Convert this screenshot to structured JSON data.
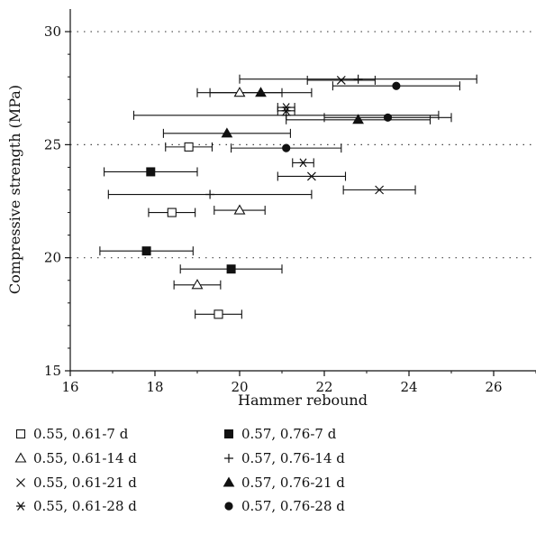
{
  "chart_data": {
    "type": "scatter",
    "xlabel": "Hammer rebound",
    "ylabel": "Compressive strength (MPa)",
    "xlim": [
      16,
      27
    ],
    "ylim": [
      15,
      31
    ],
    "x_ticks": [
      "16",
      "18",
      "20",
      "22",
      "24",
      "26"
    ],
    "y_ticks": [
      "15",
      "20",
      "25",
      "30"
    ],
    "grid": "horizontal dotted at 20, 25, 30",
    "legend_position": "bottom",
    "series": [
      {
        "name": "0.55, 0.61-7 d",
        "marker": "square-open",
        "points": [
          {
            "x": 18.8,
            "y": 24.9,
            "xerr": 0.55
          },
          {
            "x": 18.4,
            "y": 22.0,
            "xerr": 0.55
          },
          {
            "x": 19.5,
            "y": 17.5,
            "xerr": 0.55
          }
        ]
      },
      {
        "name": "0.57, 0.76-7 d",
        "marker": "square-filled",
        "points": [
          {
            "x": 17.9,
            "y": 23.8,
            "xerr": 1.1
          },
          {
            "x": 17.8,
            "y": 20.3,
            "xerr": 1.1
          },
          {
            "x": 19.8,
            "y": 19.5,
            "xerr": 1.2
          }
        ]
      },
      {
        "name": "0.55, 0.61-14 d",
        "marker": "triangle-open",
        "points": [
          {
            "x": 20.0,
            "y": 27.3,
            "xerr": 1.0
          },
          {
            "x": 20.0,
            "y": 22.1,
            "xerr": 0.6
          },
          {
            "x": 19.0,
            "y": 18.8,
            "xerr": 0.55
          }
        ]
      },
      {
        "name": "0.57, 0.76-14 d",
        "marker": "plus",
        "points": [
          {
            "x": 22.8,
            "y": 27.9,
            "xerr": 2.8
          },
          {
            "x": 21.1,
            "y": 26.3,
            "xerr": 3.6
          },
          {
            "x": 19.3,
            "y": 22.8,
            "xerr": 2.4
          }
        ]
      },
      {
        "name": "0.55, 0.61-21 d",
        "marker": "x",
        "points": [
          {
            "x": 22.4,
            "y": 27.85,
            "xerr": 0.8
          },
          {
            "x": 21.7,
            "y": 23.6,
            "xerr": 0.8
          },
          {
            "x": 23.3,
            "y": 23.0,
            "xerr": 0.85
          }
        ]
      },
      {
        "name": "0.57, 0.76-21 d",
        "marker": "triangle-filled",
        "points": [
          {
            "x": 20.5,
            "y": 27.3,
            "xerr": 1.2
          },
          {
            "x": 22.8,
            "y": 26.1,
            "xerr": 1.7
          },
          {
            "x": 19.7,
            "y": 25.5,
            "xerr": 1.5
          }
        ]
      },
      {
        "name": "0.55, 0.61-28 d",
        "marker": "asterisk",
        "points": [
          {
            "x": 21.1,
            "y": 26.65,
            "xerr": 0.2
          },
          {
            "x": 21.1,
            "y": 26.5,
            "xerr": 0.2
          },
          {
            "x": 21.5,
            "y": 24.2,
            "xerr": 0.25
          }
        ]
      },
      {
        "name": "0.57, 0.76-28 d",
        "marker": "circle-filled",
        "points": [
          {
            "x": 23.7,
            "y": 27.6,
            "xerr": 1.5
          },
          {
            "x": 23.5,
            "y": 26.2,
            "xerr": 1.5
          },
          {
            "x": 21.1,
            "y": 24.85,
            "xerr": 1.3
          }
        ]
      }
    ]
  }
}
